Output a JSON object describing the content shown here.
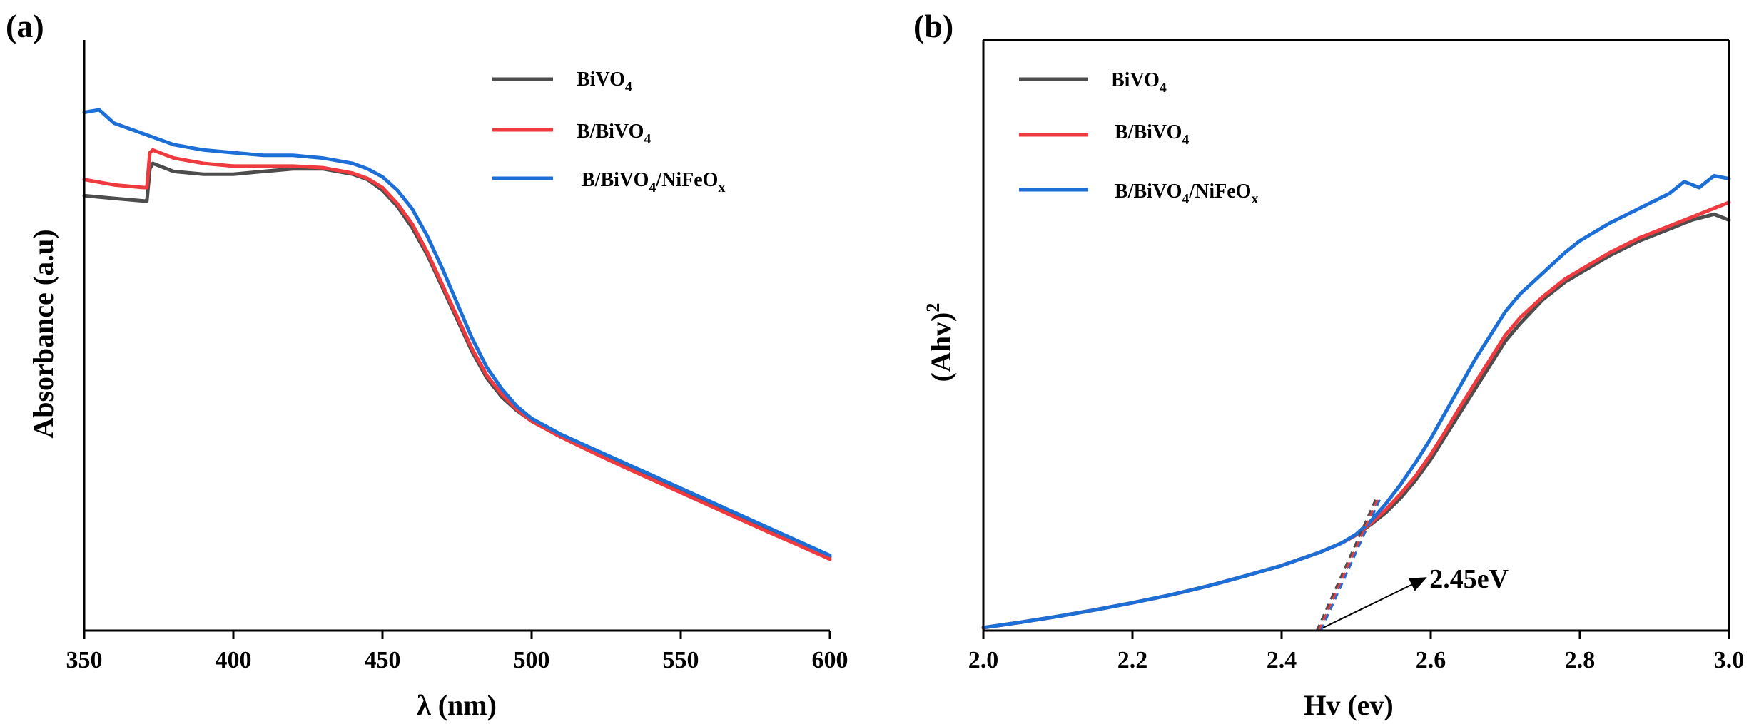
{
  "colors": {
    "BiVO4": "#4d4d4d",
    "B/BiVO4": "#ef3a3f",
    "B/BiVO4/NiFeOx": "#1c6fd6",
    "axis": "#000000"
  },
  "chart_data": [
    {
      "type": "line",
      "panel": "(a)",
      "xlabel": "λ (nm)",
      "ylabel": "Absorbance (a.u)",
      "xlim": [
        350,
        600
      ],
      "ylim": [
        0,
        1.1
      ],
      "xticks": [
        350,
        400,
        450,
        500,
        550,
        600
      ],
      "xtick_labels": [
        "350",
        "400",
        "450",
        "500",
        "550",
        "600"
      ],
      "grid": false,
      "legend_position": "top-right",
      "series": [
        {
          "name": "BiVO4",
          "label_main": "BiVO",
          "label_sub": "4",
          "x": [
            350,
            360,
            370,
            371,
            372,
            373,
            380,
            390,
            400,
            410,
            420,
            430,
            440,
            445,
            450,
            455,
            460,
            465,
            470,
            475,
            480,
            485,
            490,
            495,
            500,
            510,
            520,
            530,
            540,
            550,
            560,
            570,
            580,
            590,
            600
          ],
          "y": [
            0.81,
            0.805,
            0.8,
            0.8,
            0.86,
            0.87,
            0.855,
            0.85,
            0.85,
            0.855,
            0.86,
            0.86,
            0.85,
            0.84,
            0.82,
            0.79,
            0.75,
            0.7,
            0.64,
            0.58,
            0.52,
            0.47,
            0.435,
            0.41,
            0.39,
            0.36,
            0.335,
            0.31,
            0.285,
            0.26,
            0.235,
            0.21,
            0.185,
            0.16,
            0.137
          ]
        },
        {
          "name": "B/BiVO4",
          "label_main": "B/BiVO",
          "label_sub": "4",
          "x": [
            350,
            360,
            370,
            371,
            372,
            373,
            380,
            390,
            400,
            410,
            420,
            430,
            440,
            445,
            450,
            455,
            460,
            465,
            470,
            475,
            480,
            485,
            490,
            495,
            500,
            510,
            520,
            530,
            540,
            550,
            560,
            570,
            580,
            590,
            600
          ],
          "y": [
            0.84,
            0.83,
            0.825,
            0.825,
            0.89,
            0.895,
            0.88,
            0.87,
            0.865,
            0.865,
            0.865,
            0.862,
            0.852,
            0.842,
            0.825,
            0.795,
            0.757,
            0.705,
            0.645,
            0.585,
            0.525,
            0.475,
            0.44,
            0.412,
            0.39,
            0.36,
            0.333,
            0.307,
            0.282,
            0.257,
            0.232,
            0.207,
            0.182,
            0.158,
            0.133
          ]
        },
        {
          "name": "B/BiVO4/NiFeOx",
          "label_main": "B/BiVO",
          "label_sub": "4",
          "label_main2": "/NiFeO",
          "label_sub2": "x",
          "x": [
            350,
            355,
            360,
            370,
            380,
            390,
            400,
            410,
            420,
            430,
            440,
            445,
            450,
            455,
            460,
            465,
            470,
            475,
            480,
            485,
            490,
            495,
            500,
            510,
            520,
            530,
            540,
            550,
            560,
            570,
            580,
            590,
            600
          ],
          "y": [
            0.965,
            0.97,
            0.945,
            0.925,
            0.905,
            0.895,
            0.89,
            0.885,
            0.885,
            0.88,
            0.87,
            0.86,
            0.845,
            0.82,
            0.785,
            0.735,
            0.675,
            0.61,
            0.545,
            0.49,
            0.45,
            0.418,
            0.395,
            0.365,
            0.34,
            0.315,
            0.29,
            0.265,
            0.24,
            0.215,
            0.19,
            0.165,
            0.14
          ]
        }
      ]
    },
    {
      "type": "line",
      "panel": "(b)",
      "xlabel": "Hv (ev)",
      "ylabel_main": "(Ahv)",
      "ylabel_sup": "2",
      "xlim": [
        2.0,
        3.0
      ],
      "ylim": [
        0,
        1.0
      ],
      "xticks": [
        2.0,
        2.2,
        2.4,
        2.6,
        2.8,
        3.0
      ],
      "xtick_labels": [
        "2.0",
        "2.2",
        "2.4",
        "2.6",
        "2.8",
        "3.0"
      ],
      "grid": false,
      "legend_position": "top-left",
      "annotation": {
        "text": "2.45eV",
        "x": 2.45,
        "y": 0.0
      },
      "tangent": {
        "x": [
          2.45,
          2.53
        ],
        "y": [
          0.0,
          0.225
        ]
      },
      "series": [
        {
          "name": "BiVO4",
          "label_main": "BiVO",
          "label_sub": "4",
          "x": [
            2.0,
            2.05,
            2.1,
            2.15,
            2.2,
            2.25,
            2.3,
            2.35,
            2.4,
            2.45,
            2.48,
            2.5,
            2.52,
            2.54,
            2.56,
            2.58,
            2.6,
            2.62,
            2.64,
            2.66,
            2.68,
            2.7,
            2.72,
            2.75,
            2.78,
            2.8,
            2.84,
            2.88,
            2.92,
            2.95,
            2.98,
            3.0
          ],
          "y": [
            0.005,
            0.014,
            0.024,
            0.035,
            0.047,
            0.06,
            0.075,
            0.092,
            0.11,
            0.132,
            0.148,
            0.162,
            0.18,
            0.2,
            0.225,
            0.255,
            0.29,
            0.33,
            0.37,
            0.41,
            0.45,
            0.49,
            0.52,
            0.56,
            0.59,
            0.605,
            0.635,
            0.66,
            0.68,
            0.695,
            0.705,
            0.695
          ]
        },
        {
          "name": "B/BiVO4",
          "label_main": "B/BiVO",
          "label_sub": "4",
          "x": [
            2.0,
            2.05,
            2.1,
            2.15,
            2.2,
            2.25,
            2.3,
            2.35,
            2.4,
            2.45,
            2.48,
            2.5,
            2.52,
            2.54,
            2.56,
            2.58,
            2.6,
            2.62,
            2.64,
            2.66,
            2.68,
            2.7,
            2.72,
            2.75,
            2.78,
            2.8,
            2.84,
            2.88,
            2.92,
            2.95,
            2.98,
            3.0
          ],
          "y": [
            0.005,
            0.014,
            0.024,
            0.035,
            0.047,
            0.06,
            0.075,
            0.092,
            0.11,
            0.132,
            0.148,
            0.162,
            0.182,
            0.205,
            0.232,
            0.262,
            0.298,
            0.338,
            0.38,
            0.42,
            0.46,
            0.5,
            0.53,
            0.565,
            0.595,
            0.61,
            0.64,
            0.665,
            0.685,
            0.7,
            0.715,
            0.725
          ]
        },
        {
          "name": "B/BiVO4/NiFeOx",
          "label_main": "B/BiVO",
          "label_sub": "4",
          "label_main2": "/NiFeO",
          "label_sub2": "x",
          "x": [
            2.0,
            2.05,
            2.1,
            2.15,
            2.2,
            2.25,
            2.3,
            2.35,
            2.4,
            2.45,
            2.48,
            2.5,
            2.52,
            2.54,
            2.56,
            2.58,
            2.6,
            2.62,
            2.64,
            2.66,
            2.68,
            2.7,
            2.72,
            2.75,
            2.78,
            2.8,
            2.84,
            2.88,
            2.92,
            2.94,
            2.96,
            2.98,
            3.0
          ],
          "y": [
            0.005,
            0.014,
            0.024,
            0.035,
            0.047,
            0.06,
            0.075,
            0.092,
            0.11,
            0.132,
            0.148,
            0.163,
            0.186,
            0.215,
            0.248,
            0.285,
            0.325,
            0.37,
            0.415,
            0.46,
            0.5,
            0.54,
            0.57,
            0.605,
            0.64,
            0.66,
            0.69,
            0.715,
            0.74,
            0.76,
            0.75,
            0.77,
            0.765
          ]
        }
      ]
    }
  ]
}
